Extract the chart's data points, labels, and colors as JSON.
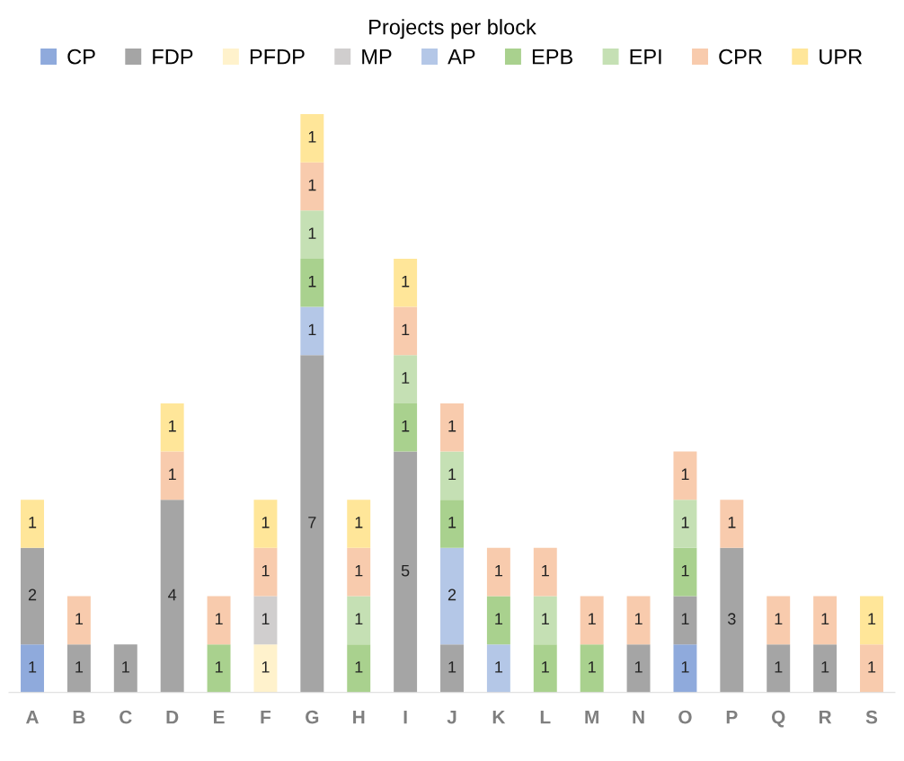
{
  "chart_data": {
    "type": "bar",
    "title": "Projects per block",
    "stacked": true,
    "data_labels": true,
    "legend": "top",
    "grid": false,
    "tick_labels": "x",
    "categories": [
      "A",
      "B",
      "C",
      "D",
      "E",
      "F",
      "G",
      "H",
      "I",
      "J",
      "K",
      "L",
      "M",
      "N",
      "O",
      "P",
      "Q",
      "R",
      "S"
    ],
    "series": [
      {
        "name": "CP",
        "color": "#8faadc",
        "values": [
          1,
          null,
          null,
          null,
          null,
          null,
          null,
          null,
          null,
          null,
          null,
          null,
          null,
          null,
          1,
          null,
          null,
          null,
          null
        ]
      },
      {
        "name": "FDP",
        "color": "#a5a5a5",
        "values": [
          2,
          1,
          1,
          4,
          null,
          null,
          7,
          null,
          5,
          1,
          null,
          null,
          null,
          1,
          1,
          3,
          1,
          1,
          null
        ]
      },
      {
        "name": "PFDP",
        "color": "#fff2cc",
        "values": [
          null,
          null,
          null,
          null,
          null,
          1,
          null,
          null,
          null,
          null,
          null,
          null,
          null,
          null,
          null,
          null,
          null,
          null,
          null
        ]
      },
      {
        "name": "MP",
        "color": "#d0cece",
        "values": [
          null,
          null,
          null,
          null,
          null,
          1,
          null,
          null,
          null,
          null,
          null,
          null,
          null,
          null,
          null,
          null,
          null,
          null,
          null
        ]
      },
      {
        "name": "AP",
        "color": "#b4c7e7",
        "values": [
          null,
          null,
          null,
          null,
          null,
          null,
          1,
          null,
          null,
          2,
          1,
          null,
          null,
          null,
          null,
          null,
          null,
          null,
          null
        ]
      },
      {
        "name": "EPB",
        "color": "#a9d18e",
        "values": [
          null,
          null,
          null,
          null,
          1,
          null,
          1,
          1,
          1,
          1,
          1,
          1,
          1,
          null,
          1,
          null,
          null,
          null,
          null
        ]
      },
      {
        "name": "EPI",
        "color": "#c5e0b4",
        "values": [
          null,
          null,
          null,
          null,
          null,
          null,
          1,
          1,
          1,
          1,
          null,
          1,
          null,
          null,
          1,
          null,
          null,
          null,
          null
        ]
      },
      {
        "name": "CPR",
        "color": "#f8cbad",
        "values": [
          null,
          1,
          null,
          1,
          1,
          1,
          1,
          1,
          1,
          1,
          1,
          1,
          1,
          1,
          1,
          1,
          1,
          1,
          1
        ]
      },
      {
        "name": "UPR",
        "color": "#ffe699",
        "values": [
          1,
          null,
          null,
          1,
          null,
          1,
          1,
          1,
          1,
          null,
          null,
          null,
          null,
          null,
          null,
          null,
          null,
          null,
          1
        ]
      }
    ]
  }
}
